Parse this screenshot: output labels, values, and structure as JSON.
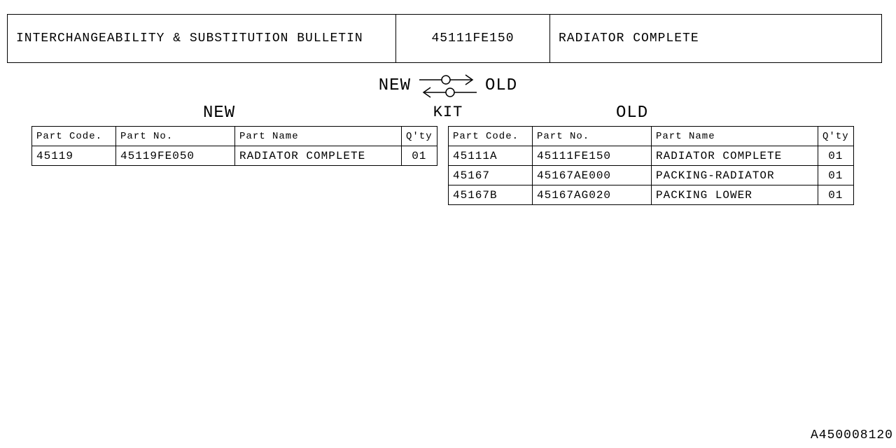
{
  "header": {
    "title": "INTERCHANGEABILITY & SUBSTITUTION BULLETIN",
    "part_no": "45111FE150",
    "part_name": "RADIATOR COMPLETE"
  },
  "symbol": {
    "left_label": "NEW",
    "right_label": "OLD",
    "kit_label": "KIT",
    "stroke_color": "#000000",
    "circle_r": 6
  },
  "sections": {
    "new_label": "NEW",
    "old_label": "OLD"
  },
  "columns": {
    "part_code": "Part Code.",
    "part_no": "Part No.",
    "part_name": "Part Name",
    "qty": "Q'ty"
  },
  "new_rows": [
    {
      "code": "45119",
      "no": "45119FE050",
      "name": "RADIATOR COMPLETE",
      "qty": "01"
    }
  ],
  "old_rows": [
    {
      "code": "45111A",
      "no": "45111FE150",
      "name": "RADIATOR COMPLETE",
      "qty": "01"
    },
    {
      "code": "45167",
      "no": "45167AE000",
      "name": "PACKING-RADIATOR",
      "qty": "01"
    },
    {
      "code": "45167B",
      "no": "45167AG020",
      "name": "PACKING LOWER",
      "qty": "01"
    }
  ],
  "doc_id": "A450008120",
  "colors": {
    "bg": "#ffffff",
    "fg": "#000000"
  }
}
